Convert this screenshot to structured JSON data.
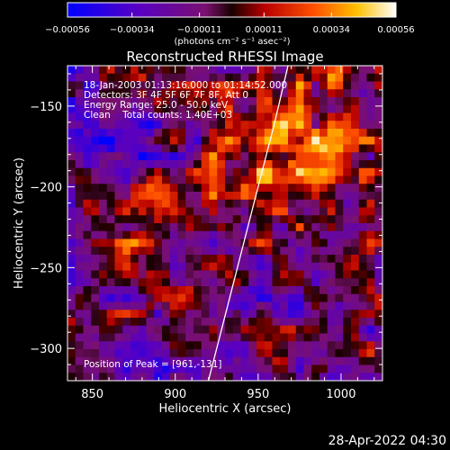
{
  "chart_data": {
    "type": "heatmap",
    "title": "Reconstructed RHESSI Image",
    "xlabel": "Heliocentric X (arcsec)",
    "ylabel": "Heliocentric Y (arcsec)",
    "xlim": [
      835,
      1025
    ],
    "ylim": [
      -320,
      -125
    ],
    "x_ticks": [
      850,
      900,
      950,
      1000
    ],
    "x_tick_labels": [
      "850",
      "900",
      "950",
      "1000"
    ],
    "y_ticks": [
      -150,
      -200,
      -250,
      -300
    ],
    "y_tick_labels": [
      "−150",
      "−200",
      "−250",
      "−300"
    ],
    "colorbar": {
      "colormap": "blue-purple-red-yellow-white",
      "range": [
        -0.00056,
        0.00056
      ],
      "ticks": [
        -0.00056,
        -0.00034,
        -0.00011,
        0.00011,
        0.00034,
        0.00056
      ],
      "tick_labels": [
        "−0.00056",
        "−0.00034",
        "−0.00011",
        "0.00011",
        "0.00034",
        "0.00056"
      ],
      "unit_label": "(photons cm⁻² s⁻¹ asec⁻²)"
    },
    "annotations": [
      "18-Jan-2003 01:13:16.000 to 01:14:52.000",
      "Detectors: 3F 4F 5F 6F 7F 8F, Att 0",
      "Energy Range: 25.0 - 50.0 keV",
      "Clean    Total counts: 1.40E+03"
    ],
    "peak_label": "Position of Peak = [961,-131]",
    "peak": {
      "x": 961,
      "y": -131
    },
    "limb_curve": {
      "x": [
        920,
        930,
        940,
        950,
        960,
        968
      ],
      "y": [
        -320,
        -280,
        -240,
        -200,
        -160,
        -125
      ]
    },
    "grid": false,
    "legend": "none"
  },
  "footer": {
    "timestamp": "28-Apr-2022 04:30"
  }
}
